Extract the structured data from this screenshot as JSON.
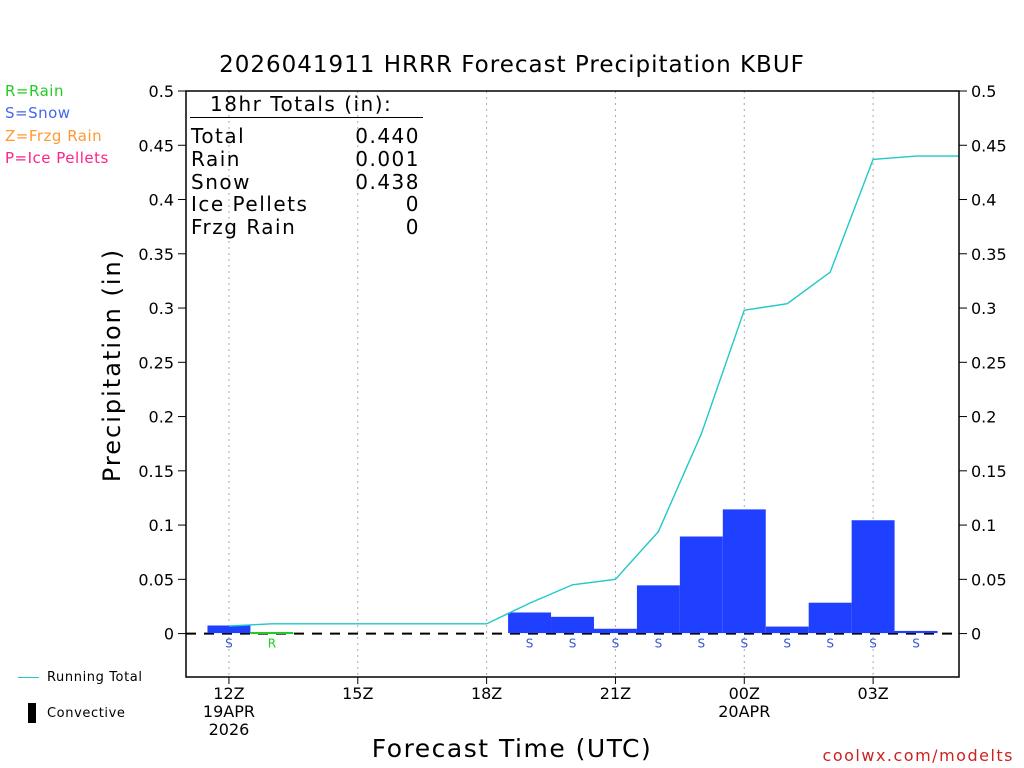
{
  "chart_data": {
    "type": "bar",
    "title": "2026041911 HRRR Forecast Precipitation KBUF",
    "ylabel": "Precipitation (in)",
    "xlabel": "Forecast Time (UTC)",
    "ylim": [
      -0.04,
      0.5
    ],
    "y_ticks": [
      0,
      0.05,
      0.1,
      0.15,
      0.2,
      0.25,
      0.3,
      0.35,
      0.4,
      0.45,
      0.5
    ],
    "y_tick_labels": [
      "0",
      "0.05",
      "0.1",
      "0.15",
      "0.2",
      "0.25",
      "0.3",
      "0.35",
      "0.4",
      "0.45",
      "0.5"
    ],
    "x_range_hours": [
      -1,
      17
    ],
    "x_ticks": [
      {
        "hour": 0,
        "lines": [
          "12Z",
          "19APR",
          "2026"
        ]
      },
      {
        "hour": 3,
        "lines": [
          "15Z"
        ]
      },
      {
        "hour": 6,
        "lines": [
          "18Z"
        ]
      },
      {
        "hour": 9,
        "lines": [
          "21Z"
        ]
      },
      {
        "hour": 12,
        "lines": [
          "00Z",
          "20APR"
        ]
      },
      {
        "hour": 15,
        "lines": [
          "03Z"
        ]
      }
    ],
    "bars": [
      {
        "hour": 0,
        "value": 0.007,
        "type": "S"
      },
      {
        "hour": 1,
        "value": 0.001,
        "type": "R"
      },
      {
        "hour": 2,
        "value": 0.0,
        "type": ""
      },
      {
        "hour": 3,
        "value": 0.0,
        "type": ""
      },
      {
        "hour": 4,
        "value": 0.0,
        "type": ""
      },
      {
        "hour": 5,
        "value": 0.0,
        "type": ""
      },
      {
        "hour": 6,
        "value": 0.0,
        "type": ""
      },
      {
        "hour": 7,
        "value": 0.019,
        "type": "S"
      },
      {
        "hour": 8,
        "value": 0.015,
        "type": "S"
      },
      {
        "hour": 9,
        "value": 0.004,
        "type": "S"
      },
      {
        "hour": 10,
        "value": 0.044,
        "type": "S"
      },
      {
        "hour": 11,
        "value": 0.089,
        "type": "S"
      },
      {
        "hour": 12,
        "value": 0.114,
        "type": "S"
      },
      {
        "hour": 13,
        "value": 0.006,
        "type": "S"
      },
      {
        "hour": 14,
        "value": 0.028,
        "type": "S"
      },
      {
        "hour": 15,
        "value": 0.104,
        "type": "S"
      },
      {
        "hour": 16,
        "value": 0.002,
        "type": "S"
      }
    ],
    "running_total": {
      "name": "Running Total",
      "x": [
        0,
        1,
        2,
        3,
        4,
        5,
        6,
        7,
        8,
        9,
        10,
        11,
        12,
        13,
        14,
        15,
        16,
        17
      ],
      "y": [
        0.007,
        0.009,
        0.009,
        0.009,
        0.009,
        0.009,
        0.009,
        0.028,
        0.045,
        0.05,
        0.094,
        0.184,
        0.298,
        0.304,
        0.333,
        0.437,
        0.44,
        0.44
      ]
    },
    "colors": {
      "snow": "#2040ff",
      "rain": "#22cc22",
      "frzg_rain": "#ff9933",
      "ice_pellets": "#ff2288",
      "running_total": "#20c8c8",
      "grid": "#aaaaaa"
    }
  },
  "legend": {
    "rain": "R=Rain",
    "snow": "S=Snow",
    "frzg": "Z=Frzg Rain",
    "ice": "P=Ice Pellets"
  },
  "totals": {
    "heading": "18hr Totals (in):",
    "rows": [
      {
        "label": "Total",
        "value": "0.440"
      },
      {
        "label": "Rain",
        "value": "0.001"
      },
      {
        "label": "Snow",
        "value": "0.438"
      },
      {
        "label": "Ice Pellets",
        "value": "0"
      },
      {
        "label": "Frzg Rain",
        "value": "0"
      }
    ]
  },
  "bottom_legend": {
    "running_total": "Running Total",
    "convective": "Convective"
  },
  "credit": "coolwx.com/modelts"
}
